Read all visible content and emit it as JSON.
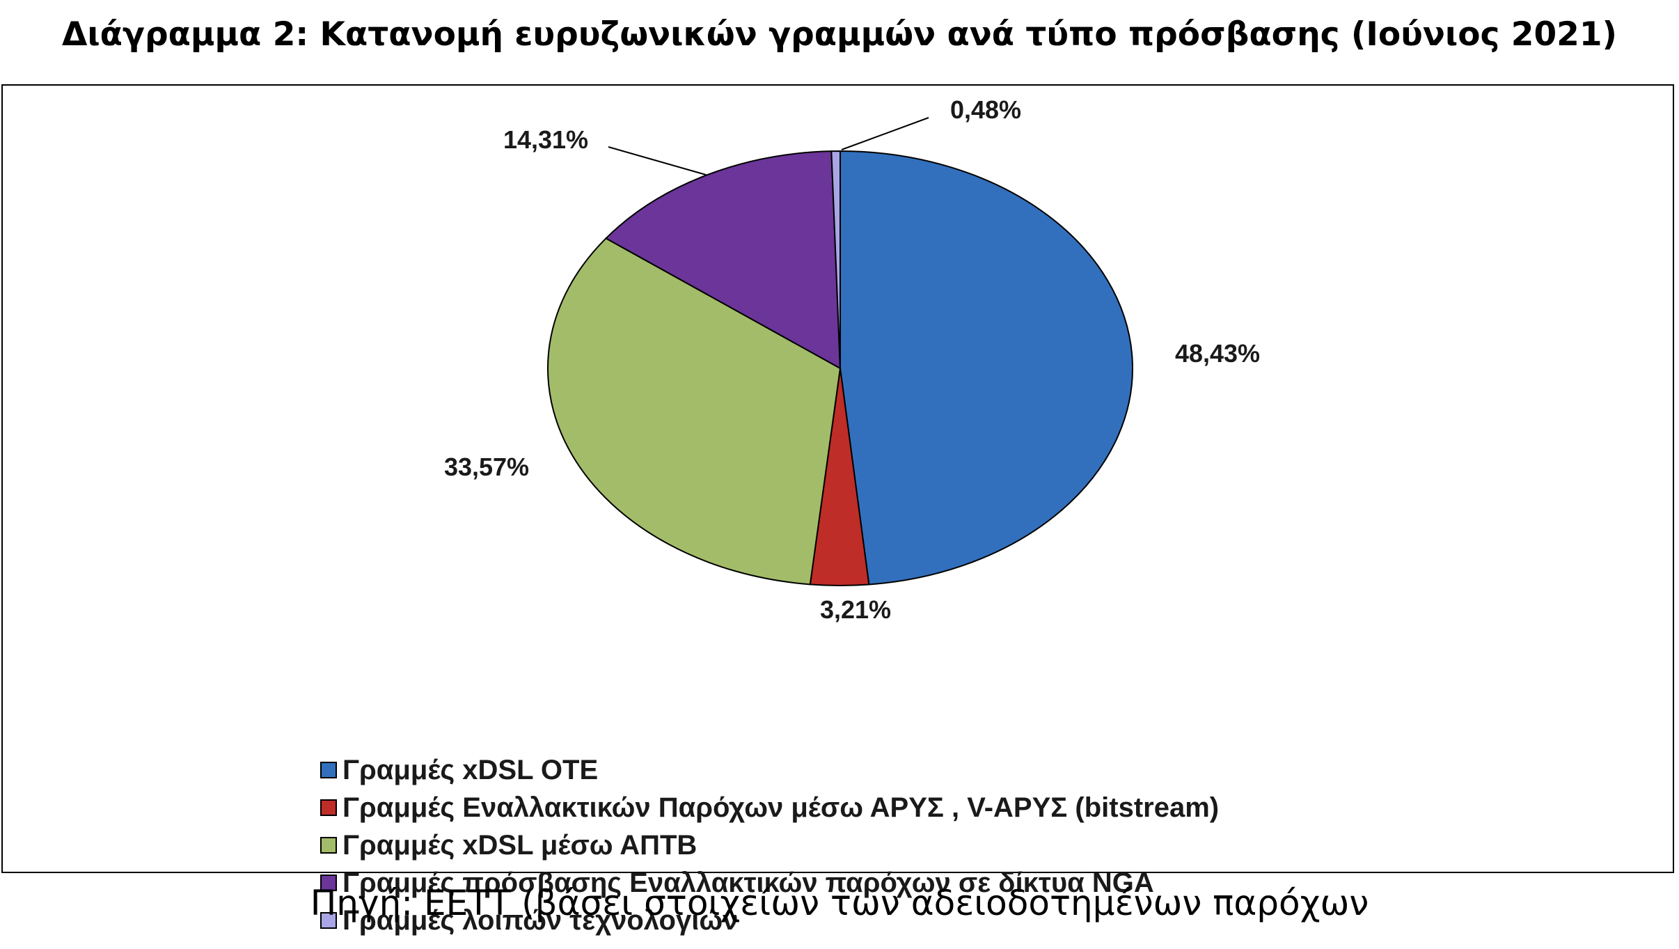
{
  "title": "Διάγραμμα 2: Κατανομή ευρυζωνικών γραμμών ανά τύπο πρόσβασης (Ιούνιος 2021)",
  "source": "Πηγή: ΕΕΤΤ (βάσει στοιχείων των αδειοδοτημένων παρόχων",
  "chart_data": {
    "type": "pie",
    "title": "Διάγραμμα 2: Κατανομή ευρυζωνικών γραμμών ανά τύπο πρόσβασης (Ιούνιος 2021)",
    "legend_position": "bottom",
    "slices": [
      {
        "name": "Γραμμές xDSL ΟΤΕ",
        "value": 48.43,
        "label": "48,43%",
        "color": "#3270bd"
      },
      {
        "name": "Γραμμές Εναλλακτικών Παρόχων μέσω ΑΡΥΣ , V-ΑΡΥΣ  (bitstream)",
        "value": 3.21,
        "label": "3,21%",
        "color": "#be2d27"
      },
      {
        "name": "Γραμμές xDSL μέσω ΑΠΤΒ",
        "value": 33.57,
        "label": "33,57%",
        "color": "#a3bc69"
      },
      {
        "name": "Γραμμές πρόσβασης  Εναλλακτικών παρόχων σε δίκτυα  NGA",
        "value": 14.31,
        "label": "14,31%",
        "color": "#6b3599"
      },
      {
        "name": "Γραμμές λοιπών τεχνολογιών",
        "value": 0.48,
        "label": "0,48%",
        "color": "#a9a6e6"
      }
    ]
  }
}
